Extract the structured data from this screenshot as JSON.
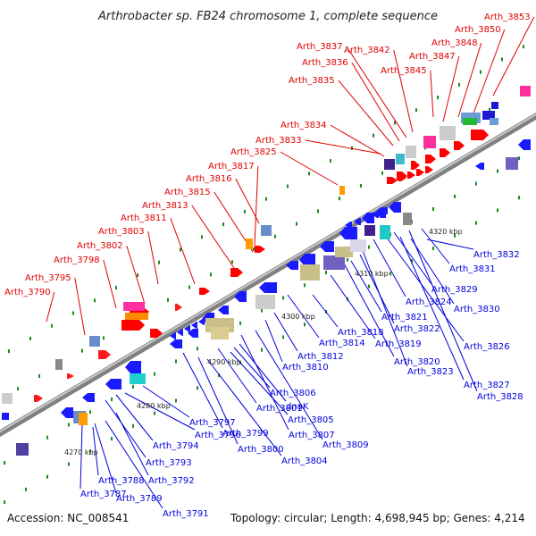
{
  "title": "Arthrobacter sp. FB24 chromosome 1, complete sequence",
  "footer": {
    "accession": "Accession: NC_008541",
    "summary": "Topology: circular; Length: 4,698,945 bp; Genes: 4,214"
  },
  "colors": {
    "forward_label": "#e00000",
    "reverse_label": "#0000dd",
    "backbone": "#808080",
    "ticks": "#1a8a1a"
  },
  "kbp_markers": [
    "4270 kbp",
    "4280 kbp",
    "4290 kbp",
    "4300 kbp",
    "4310 kbp",
    "4320 kbp"
  ],
  "forward_genes": [
    "Arth_3790",
    "Arth_3795",
    "Arth_3798",
    "Arth_3802",
    "Arth_3803",
    "Arth_3811",
    "Arth_3813",
    "Arth_3815",
    "Arth_3816",
    "Arth_3817",
    "Arth_3825",
    "Arth_3833",
    "Arth_3834",
    "Arth_3835",
    "Arth_3836",
    "Arth_3837",
    "Arth_3842",
    "Arth_3845",
    "Arth_3847",
    "Arth_3848",
    "Arth_3850",
    "Arth_3853"
  ],
  "reverse_genes": [
    "Arth_3787",
    "Arth_3788",
    "Arth_3789",
    "Arth_3791",
    "Arth_3792",
    "Arth_3793",
    "Arth_3794",
    "Arth_3796",
    "Arth_3797",
    "Arth_3799",
    "Arth_3800",
    "Arth_3801",
    "Arth_3804",
    "Arth_3805",
    "Arth_3806",
    "dnaK",
    "Arth_3807",
    "Arth_3809",
    "Arth_3810",
    "Arth_3812",
    "Arth_3814",
    "Arth_3818",
    "Arth_3819",
    "Arth_3820",
    "Arth_3821",
    "Arth_3822",
    "Arth_3823",
    "Arth_3824",
    "Arth_3826",
    "Arth_3827",
    "Arth_3828",
    "Arth_3829",
    "Arth_3830",
    "Arth_3831",
    "Arth_3832"
  ]
}
